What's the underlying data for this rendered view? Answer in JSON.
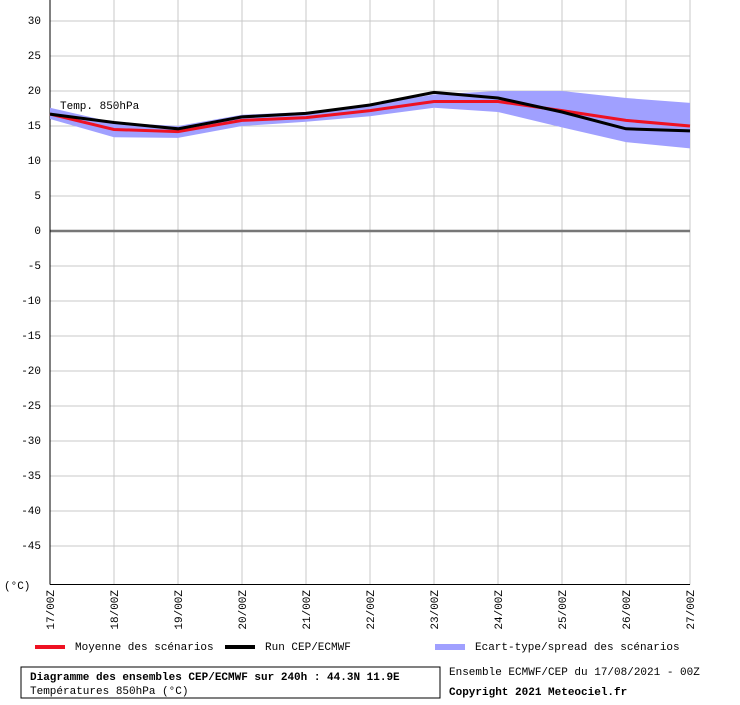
{
  "chart_data": {
    "type": "line",
    "annotation": "Temp. 850hPa",
    "y_label": "(°C)",
    "categories": [
      "17/00Z",
      "18/00Z",
      "19/00Z",
      "20/00Z",
      "21/00Z",
      "22/00Z",
      "23/00Z",
      "24/00Z",
      "25/00Z",
      "26/00Z",
      "27/00Z"
    ],
    "band": {
      "name": "Ecart-type/spread des scénarios",
      "color": "#a0a0ff",
      "high": [
        17.6,
        15.5,
        15.0,
        16.6,
        17.0,
        18.0,
        19.5,
        20.0,
        20.0,
        19.0,
        18.3
      ],
      "low": [
        16.0,
        13.4,
        13.3,
        15.0,
        15.6,
        16.4,
        17.6,
        17.0,
        14.8,
        12.7,
        11.8
      ]
    },
    "series": [
      {
        "name": "Moyenne des scénarios",
        "color": "#ee1122",
        "values": [
          16.7,
          14.5,
          14.2,
          15.8,
          16.2,
          17.2,
          18.5,
          18.5,
          17.2,
          15.8,
          15.0
        ]
      },
      {
        "name": "Run CEP/ECMWF",
        "color": "#000000",
        "values": [
          16.7,
          15.5,
          14.6,
          16.3,
          16.8,
          18.0,
          19.8,
          19.0,
          17.0,
          14.6,
          14.3
        ]
      }
    ],
    "ylim": [
      -50.5,
      33
    ],
    "yticks": [
      30,
      25,
      20,
      15,
      10,
      5,
      0,
      -5,
      -10,
      -15,
      -20,
      -25,
      -30,
      -35,
      -40,
      -45
    ],
    "grid": true,
    "footer": {
      "title": "Diagramme des ensembles CEP/ECMWF sur 240h : 44.3N 11.9E",
      "subtitle": "Températures 850hPa (°C)",
      "run": "Ensemble ECMWF/CEP du 17/08/2021 - 00Z",
      "copyright": "Copyright 2021 Meteociel.fr"
    }
  }
}
